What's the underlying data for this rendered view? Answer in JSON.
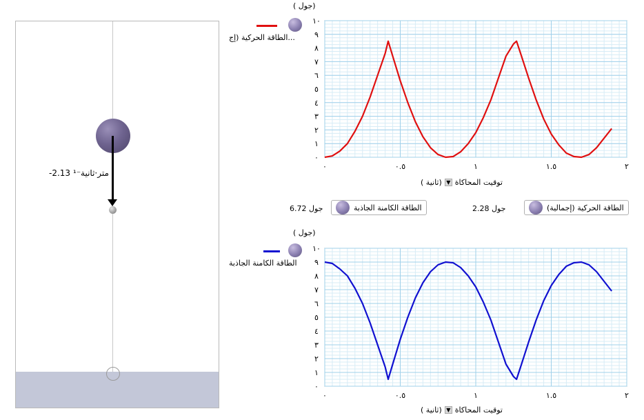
{
  "simulation": {
    "velocity_label": "-2.13 متر·ثانية⁻¹"
  },
  "readouts": {
    "kinetic_label": "الطاقة الحركية (إجمالية)",
    "kinetic_value": "2.28 جول",
    "potential_label": "الطاقة الكامنة الجاذبة",
    "potential_value": "6.72 جول"
  },
  "chart_top": {
    "unit_label": "( جول)",
    "legend_label": "الطاقة الحركية (إج...",
    "x_axis_title": "توقيت المحاكاة",
    "x_axis_unit": "( ثانية)",
    "y_ticks": [
      "٠",
      "١",
      "٢",
      "٣",
      "٤",
      "٥",
      "٦",
      "٧",
      "٨",
      "٩",
      "١٠"
    ],
    "x_ticks": [
      "٠",
      "٠.٥",
      "١",
      "١.٥",
      "٢"
    ],
    "line_color": "#e01010"
  },
  "chart_bottom": {
    "unit_label": "( جول)",
    "legend_label": "الطاقة الكامنة الجاذبة",
    "x_axis_title": "توقيت المحاكاة",
    "x_axis_unit": "( ثانية)",
    "y_ticks": [
      "٠",
      "١",
      "٢",
      "٣",
      "٤",
      "٥",
      "٦",
      "٧",
      "٨",
      "٩",
      "١٠"
    ],
    "x_ticks": [
      "٠",
      "٠.٥",
      "١",
      "١.٥",
      "٢"
    ],
    "line_color": "#1010d0"
  },
  "chart_data": [
    {
      "type": "line",
      "xlim": [
        0,
        2
      ],
      "ylim": [
        0,
        10
      ],
      "x_ticks": [
        "٠",
        "٠.٥",
        "١",
        "١.٥",
        "٢"
      ],
      "y_ticks": [
        "٠",
        "١",
        "٢",
        "٣",
        "٤",
        "٥",
        "٦",
        "٧",
        "٨",
        "٩",
        "١٠"
      ],
      "grid": true,
      "legend_position": "top-left",
      "series": [
        {
          "name": "الطاقة الحركية (إج...",
          "color": "#e01010",
          "x": [
            0.0,
            0.05,
            0.1,
            0.15,
            0.2,
            0.25,
            0.3,
            0.35,
            0.4,
            0.42,
            0.45,
            0.5,
            0.55,
            0.6,
            0.65,
            0.7,
            0.75,
            0.8,
            0.85,
            0.9,
            0.95,
            1.0,
            1.05,
            1.1,
            1.15,
            1.2,
            1.25,
            1.27,
            1.3,
            1.35,
            1.4,
            1.45,
            1.5,
            1.55,
            1.6,
            1.65,
            1.7,
            1.75,
            1.8,
            1.85,
            1.9
          ],
          "y": [
            0.0,
            0.1,
            0.45,
            1.0,
            1.9,
            3.0,
            4.4,
            6.0,
            7.6,
            8.5,
            7.4,
            5.6,
            4.0,
            2.6,
            1.5,
            0.7,
            0.2,
            0.0,
            0.05,
            0.4,
            1.0,
            1.8,
            2.9,
            4.2,
            5.8,
            7.4,
            8.3,
            8.5,
            7.5,
            5.8,
            4.2,
            2.8,
            1.7,
            0.9,
            0.3,
            0.05,
            0.0,
            0.2,
            0.7,
            1.4,
            2.1
          ]
        }
      ]
    },
    {
      "type": "line",
      "xlim": [
        0,
        2
      ],
      "ylim": [
        0,
        10
      ],
      "x_ticks": [
        "٠",
        "٠.٥",
        "١",
        "١.٥",
        "٢"
      ],
      "y_ticks": [
        "٠",
        "١",
        "٢",
        "٣",
        "٤",
        "٥",
        "٦",
        "٧",
        "٨",
        "٩",
        "١٠"
      ],
      "grid": true,
      "legend_position": "top-left",
      "series": [
        {
          "name": "الطاقة الكامنة الجاذبة",
          "color": "#1010d0",
          "x": [
            0.0,
            0.05,
            0.1,
            0.15,
            0.2,
            0.25,
            0.3,
            0.35,
            0.4,
            0.42,
            0.45,
            0.5,
            0.55,
            0.6,
            0.65,
            0.7,
            0.75,
            0.8,
            0.85,
            0.9,
            0.95,
            1.0,
            1.05,
            1.1,
            1.15,
            1.2,
            1.25,
            1.27,
            1.3,
            1.35,
            1.4,
            1.45,
            1.5,
            1.55,
            1.6,
            1.65,
            1.7,
            1.75,
            1.8,
            1.85,
            1.9
          ],
          "y": [
            9.0,
            8.9,
            8.5,
            8.0,
            7.1,
            6.0,
            4.6,
            3.0,
            1.4,
            0.5,
            1.6,
            3.4,
            5.0,
            6.4,
            7.5,
            8.3,
            8.8,
            9.0,
            8.95,
            8.6,
            8.0,
            7.2,
            6.1,
            4.8,
            3.2,
            1.6,
            0.7,
            0.5,
            1.5,
            3.2,
            4.8,
            6.2,
            7.3,
            8.1,
            8.7,
            8.95,
            9.0,
            8.8,
            8.3,
            7.6,
            6.9
          ]
        }
      ]
    }
  ]
}
